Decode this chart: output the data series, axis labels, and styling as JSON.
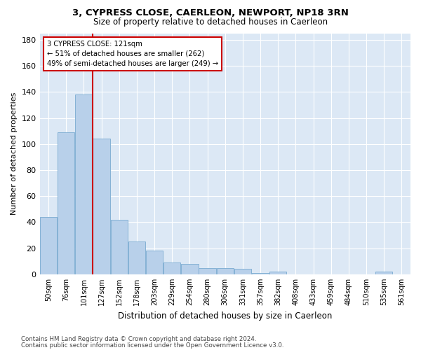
{
  "title": "3, CYPRESS CLOSE, CAERLEON, NEWPORT, NP18 3RN",
  "subtitle": "Size of property relative to detached houses in Caerleon",
  "xlabel": "Distribution of detached houses by size in Caerleon",
  "ylabel": "Number of detached properties",
  "categories": [
    "50sqm",
    "76sqm",
    "101sqm",
    "127sqm",
    "152sqm",
    "178sqm",
    "203sqm",
    "229sqm",
    "254sqm",
    "280sqm",
    "306sqm",
    "331sqm",
    "357sqm",
    "382sqm",
    "408sqm",
    "433sqm",
    "459sqm",
    "484sqm",
    "510sqm",
    "535sqm",
    "561sqm"
  ],
  "values": [
    44,
    109,
    138,
    104,
    42,
    25,
    18,
    9,
    8,
    5,
    5,
    4,
    1,
    2,
    0,
    0,
    0,
    0,
    0,
    2,
    0
  ],
  "bar_color": "#b8d0ea",
  "bar_edge_color": "#7aaad0",
  "ylim": [
    0,
    185
  ],
  "yticks": [
    0,
    20,
    40,
    60,
    80,
    100,
    120,
    140,
    160,
    180
  ],
  "annotation_line1": "3 CYPRESS CLOSE: 121sqm",
  "annotation_line2": "← 51% of detached houses are smaller (262)",
  "annotation_line3": "49% of semi-detached houses are larger (249) →",
  "annotation_box_color": "#ffffff",
  "annotation_box_edge": "#cc0000",
  "property_line_color": "#cc0000",
  "footer_line1": "Contains HM Land Registry data © Crown copyright and database right 2024.",
  "footer_line2": "Contains public sector information licensed under the Open Government Licence v3.0.",
  "background_color": "#ffffff",
  "plot_bg_color": "#dce8f5",
  "grid_color": "#ffffff"
}
